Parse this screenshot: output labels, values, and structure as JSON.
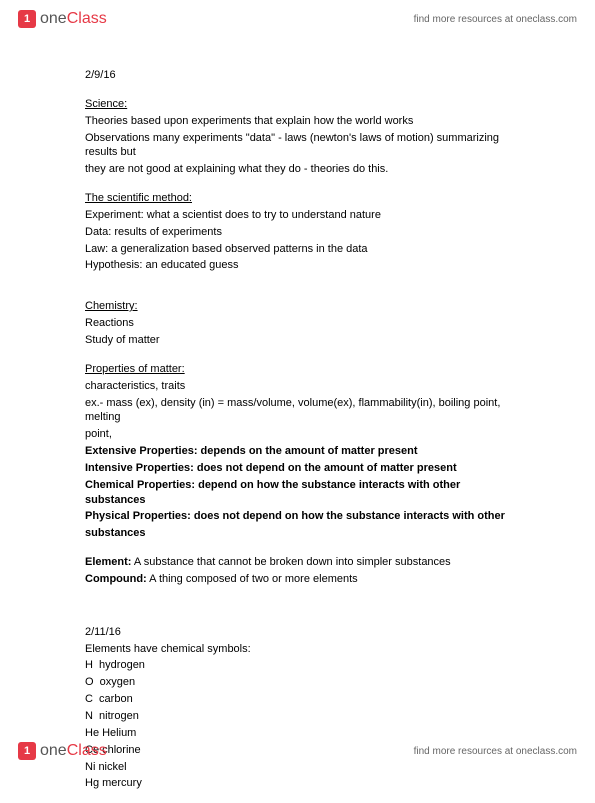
{
  "brand": {
    "one": "one",
    "class": "Class",
    "badge": "1"
  },
  "header_link": "find more resources at oneclass.com",
  "footer_link": "find more resources at oneclass.com",
  "date1": "2/9/16",
  "sec_science": "Science:",
  "science_l1": "Theories based upon experiments that explain how the world works",
  "science_l2": "Observations many experiments \"data\" - laws (newton's laws of motion) summarizing results but",
  "science_l3": "they are not good at explaining what they do - theories do this.",
  "sec_method": "The scientific method:",
  "method_l1": "Experiment: what a scientist does to try to understand nature",
  "method_l2": "Data: results of experiments",
  "method_l3": "Law: a generalization based observed patterns in the data",
  "method_l4": "Hypothesis: an educated guess",
  "sec_chem": "Chemistry:",
  "chem_l1": "Reactions",
  "chem_l2": "Study of matter",
  "sec_props": "Properties of matter:",
  "props_l1": "characteristics, traits",
  "props_l2": "ex.- mass (ex), density (in) = mass/volume, volume(ex), flammability(in), boiling point, melting",
  "props_l3": "point,",
  "ext_props": "Extensive Properties: depends on the amount of matter present",
  "int_props": "Intensive Properties: does not depend on the amount of matter present",
  "chem_props": "Chemical Properties: depend on how the substance interacts with other substances",
  "phys_props1": "Physical Properties: does not depend on how the substance interacts with other",
  "phys_props2": "substances",
  "element_b": "Element:",
  "element_t": " A substance that cannot be broken down into simpler substances",
  "compound_b": "Compound:",
  "compound_t": " A thing composed of two or more elements",
  "date2": "2/11/16",
  "elems_head": "Elements have chemical symbols:",
  "el1": "H  hydrogen",
  "el2": "O  oxygen",
  "el3": "C  carbon",
  "el4": "N  nitrogen",
  "el5": "He Helium",
  "el6": "Ce chlorine",
  "el7": "Ni nickel",
  "el8": "Hg mercury"
}
